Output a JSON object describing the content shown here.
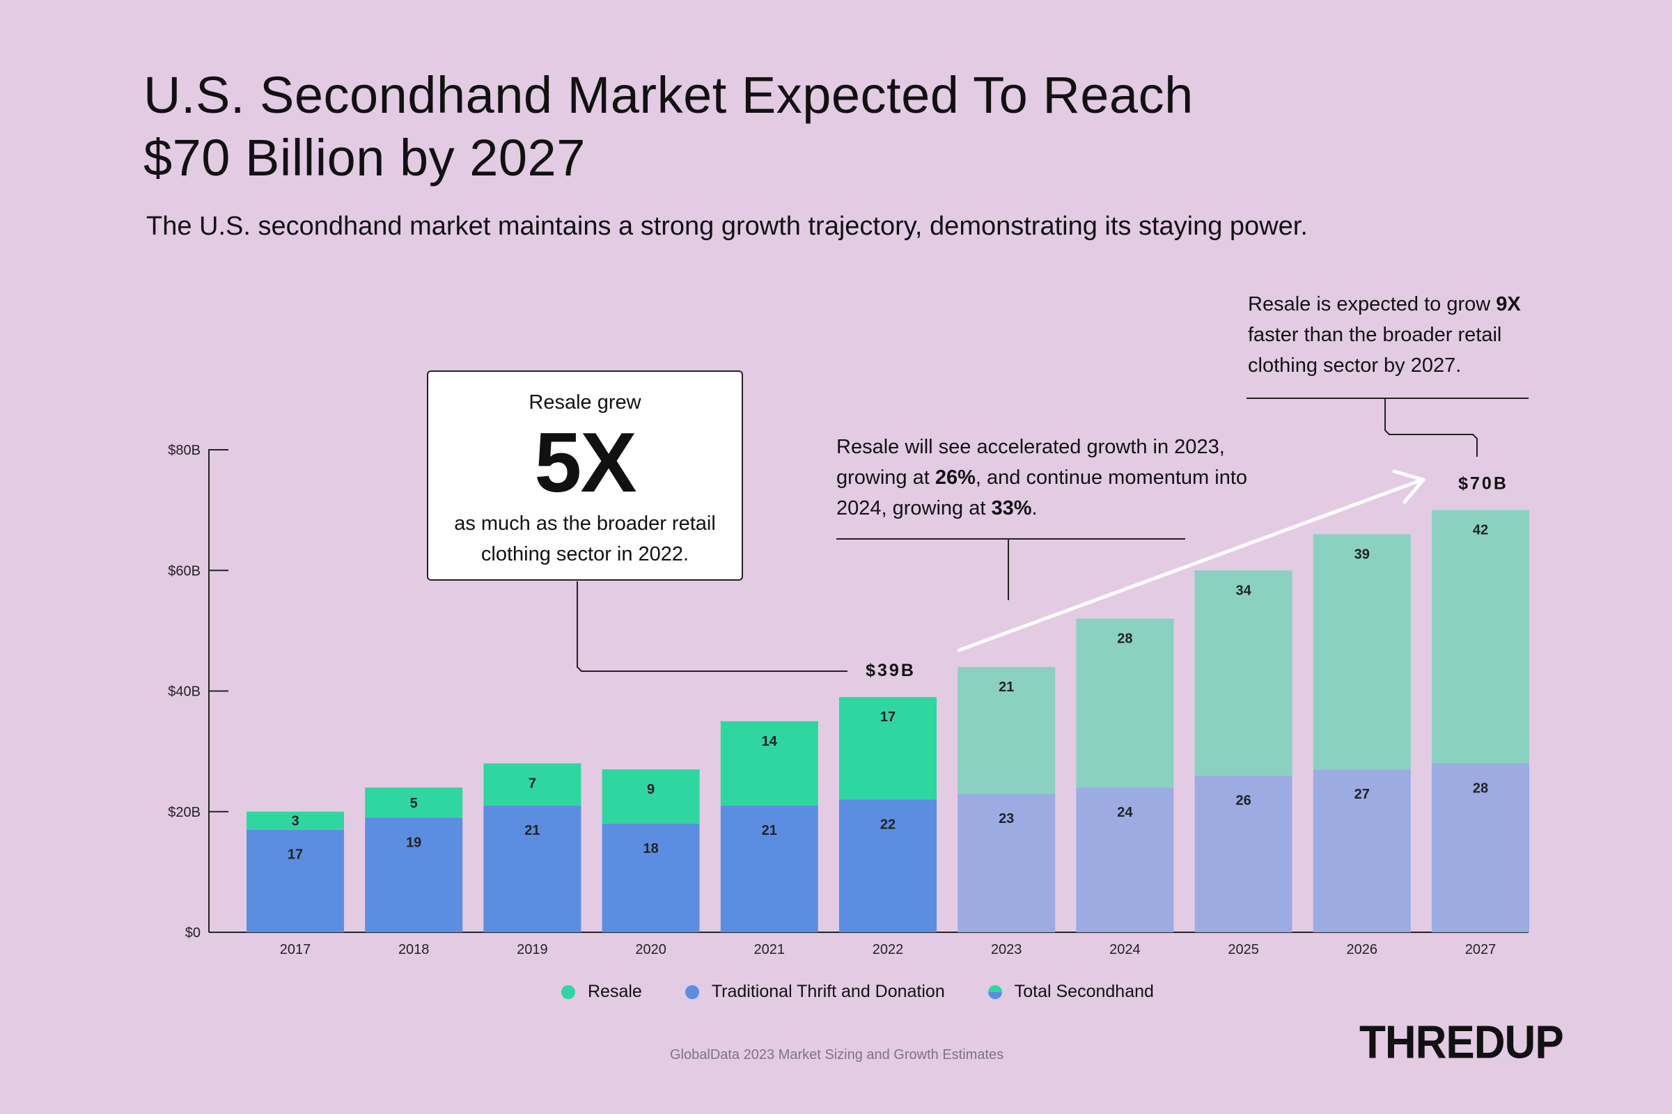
{
  "header": {
    "title_line1": "U.S. Secondhand Market Expected To Reach",
    "title_line2": "$70 Billion by 2027",
    "subtitle": "The U.S. secondhand market maintains a strong growth trajectory, demonstrating its staying power."
  },
  "callouts": {
    "five_x": {
      "top": "Resale grew",
      "big": "5X",
      "bottom": "as much as the broader retail clothing sector in 2022."
    },
    "growth_2023": {
      "t1": "Resale will see accelerated growth in 2023, growing at ",
      "b1": "26%",
      "t2": ", and continue momentum into 2024, growing at ",
      "b2": "33%",
      "t3": "."
    },
    "nine_x": {
      "t1": "Resale is expected to grow ",
      "b1": "9X",
      "t2": " faster than the broader retail clothing sector by 2027."
    }
  },
  "chart_data": {
    "type": "bar",
    "stacked": true,
    "categories": [
      "2017",
      "2018",
      "2019",
      "2020",
      "2021",
      "2022",
      "2023",
      "2024",
      "2025",
      "2026",
      "2027"
    ],
    "series": [
      {
        "name": "Traditional Thrift and Donation",
        "values": [
          17,
          19,
          21,
          18,
          21,
          22,
          23,
          24,
          26,
          27,
          28
        ]
      },
      {
        "name": "Resale",
        "values": [
          3,
          5,
          7,
          9,
          14,
          17,
          21,
          28,
          34,
          39,
          42
        ]
      }
    ],
    "projected_from": "2023",
    "y_ticks": [
      "$0",
      "$20B",
      "$40B",
      "$60B",
      "$80B"
    ],
    "y_tick_values": [
      0,
      20,
      40,
      60,
      80
    ],
    "ylim": [
      0,
      80
    ],
    "total_labels": [
      {
        "category": "2022",
        "text": "$39B"
      },
      {
        "category": "2027",
        "text": "$70B"
      }
    ],
    "legend_position": "bottom-center",
    "grid": false
  },
  "legend": [
    {
      "label": "Resale",
      "color": "#30d6a0"
    },
    {
      "label": "Traditional Thrift and Donation",
      "color": "#5b8ee0"
    },
    {
      "label": "Total Secondhand",
      "color": "#5b8ee0",
      "color2": "#30d6a0"
    }
  ],
  "colors": {
    "background": "#e3cbe4",
    "thrift_actual": "#5b8ee0",
    "resale_actual": "#30d6a0",
    "thrift_projected": "#9cabe2",
    "resale_projected": "#8bd1c1"
  },
  "footer": {
    "source": "GlobalData 2023 Market Sizing and Growth Estimates",
    "logo_text": "THREDUP"
  }
}
